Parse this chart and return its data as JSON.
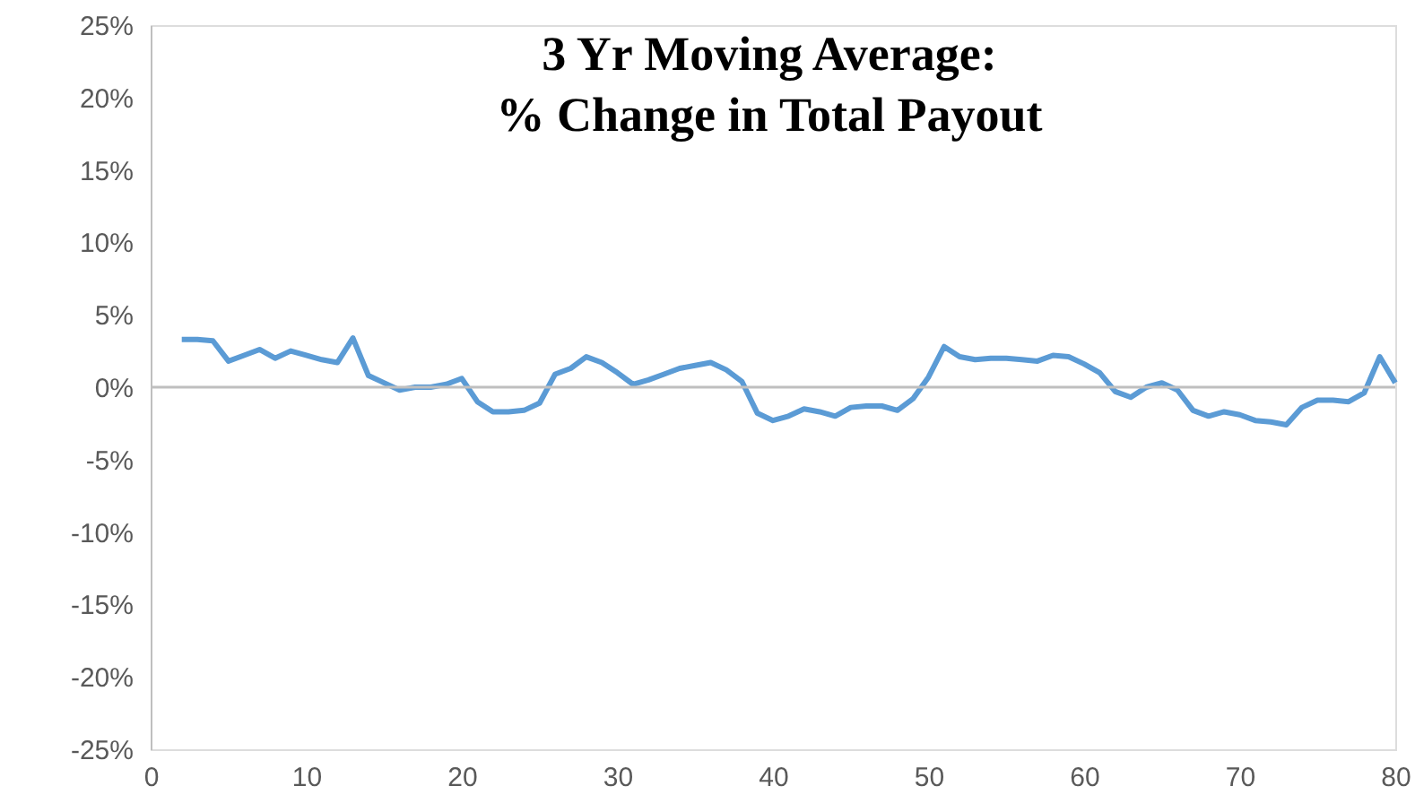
{
  "chart_data": {
    "type": "line",
    "title": "3 Yr Moving Average:\n% Change in Total Payout",
    "x": [
      2,
      3,
      4,
      5,
      6,
      7,
      8,
      9,
      10,
      11,
      12,
      13,
      14,
      15,
      16,
      17,
      18,
      19,
      20,
      21,
      22,
      23,
      24,
      25,
      26,
      27,
      28,
      29,
      30,
      31,
      32,
      33,
      34,
      35,
      36,
      37,
      38,
      39,
      40,
      41,
      42,
      43,
      44,
      45,
      46,
      47,
      48,
      49,
      50,
      51,
      52,
      53,
      54,
      55,
      56,
      57,
      58,
      59,
      60,
      61,
      62,
      63,
      64,
      65,
      66,
      67,
      68,
      69,
      70,
      71,
      72,
      73,
      74,
      75,
      76,
      77,
      78,
      79,
      80
    ],
    "series": [
      {
        "color": "#5b9bd5",
        "values": [
          3.3,
          3.3,
          3.2,
          1.8,
          2.2,
          2.6,
          2.0,
          2.5,
          2.2,
          1.9,
          1.7,
          3.4,
          0.8,
          0.3,
          -0.2,
          0.0,
          0.0,
          0.2,
          0.6,
          -1.0,
          -1.7,
          -1.7,
          -1.6,
          -1.1,
          0.9,
          1.3,
          2.1,
          1.7,
          1.0,
          0.2,
          0.5,
          0.9,
          1.3,
          1.5,
          1.7,
          1.2,
          0.4,
          -1.8,
          -2.3,
          -2.0,
          -1.5,
          -1.7,
          -2.0,
          -1.4,
          -1.3,
          -1.3,
          -1.6,
          -0.8,
          0.7,
          2.8,
          2.1,
          1.9,
          2.0,
          2.0,
          1.9,
          1.8,
          2.2,
          2.1,
          1.6,
          1.0,
          -0.3,
          -0.7,
          0.0,
          0.3,
          -0.2,
          -1.6,
          -2.0,
          -1.7,
          -1.9,
          -2.3,
          -2.4,
          -2.6,
          -1.4,
          -0.9,
          -0.9,
          -1.0,
          -0.4,
          2.1,
          0.3
        ]
      }
    ],
    "xlim": [
      0,
      80
    ],
    "xticks": [
      0,
      10,
      20,
      30,
      40,
      50,
      60,
      70,
      80
    ],
    "ylim": [
      -25,
      25
    ],
    "yticks": [
      {
        "value": -25,
        "label": "-25%"
      },
      {
        "value": -20,
        "label": "-20%"
      },
      {
        "value": -15,
        "label": "-15%"
      },
      {
        "value": -10,
        "label": "-10%"
      },
      {
        "value": -5,
        "label": "-5%"
      },
      {
        "value": 0,
        "label": "0%"
      },
      {
        "value": 5,
        "label": "5%"
      },
      {
        "value": 10,
        "label": "10%"
      },
      {
        "value": 15,
        "label": "15%"
      },
      {
        "value": 20,
        "label": "20%"
      },
      {
        "value": 25,
        "label": "25%"
      }
    ],
    "ref_lines": [
      {
        "axis": "y",
        "value": 0,
        "color": "#bfbfbf"
      }
    ],
    "grid": false,
    "marker": "none",
    "line_style": "solid"
  }
}
